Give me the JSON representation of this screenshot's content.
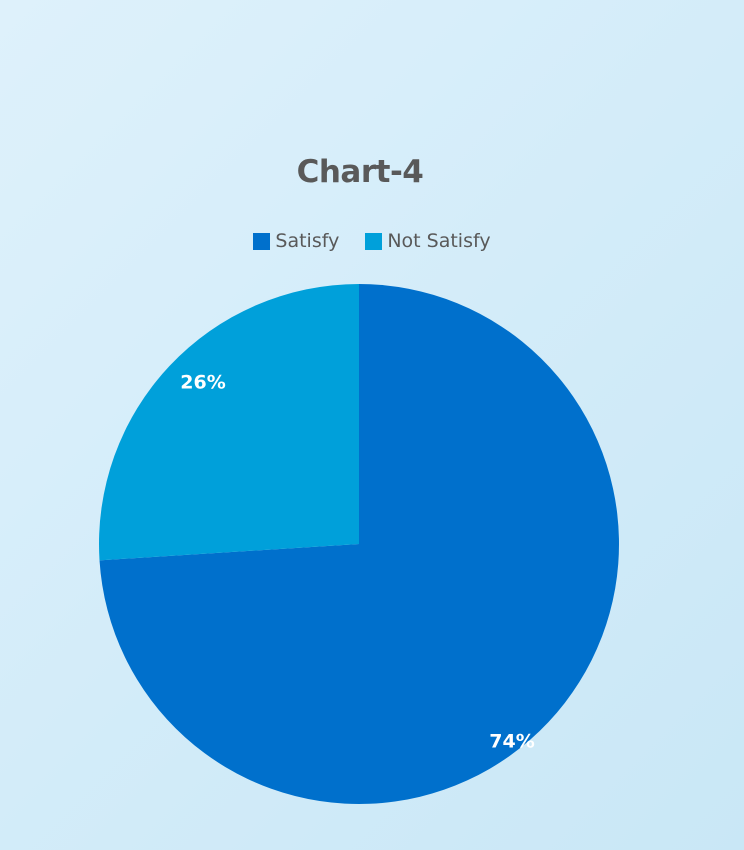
{
  "chart_data": {
    "type": "pie",
    "title": "Chart-4",
    "categories": [
      "Satisfy",
      "Not Satisfy"
    ],
    "values": [
      74,
      26
    ],
    "labels": [
      "74%",
      "26%"
    ],
    "colors": [
      "#0070cc",
      "#00a0da"
    ],
    "legend_position": "top"
  }
}
